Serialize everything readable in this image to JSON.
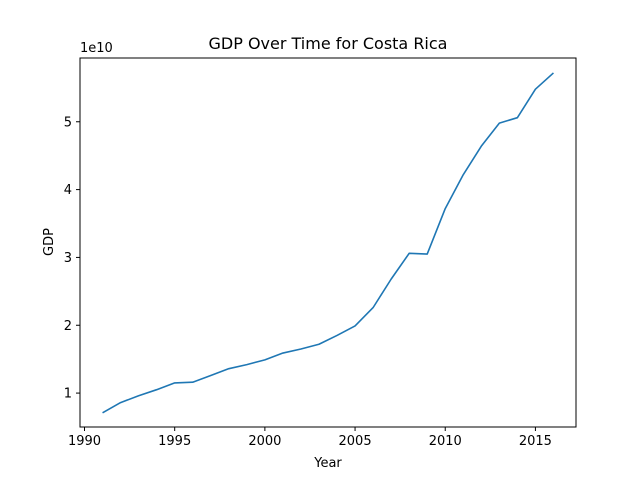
{
  "chart_data": {
    "type": "line",
    "title": "GDP Over Time for Costa Rica",
    "xlabel": "Year",
    "ylabel": "GDP",
    "y_offset_label": "1e10",
    "y_scale_factor": 10000000000,
    "xlim": [
      1989.75,
      2017.25
    ],
    "ylim": [
      0.5,
      5.94
    ],
    "xticks": [
      1990,
      1995,
      2000,
      2005,
      2010,
      2015
    ],
    "yticks": [
      1,
      2,
      3,
      4,
      5
    ],
    "grid": false,
    "legend": "none",
    "line_color": "#1f77b4",
    "series": [
      {
        "x": [
          1991,
          1992,
          1993,
          1994,
          1995,
          1996,
          1997,
          1998,
          1999,
          2000,
          2001,
          2002,
          2003,
          2004,
          2005,
          2006,
          2007,
          2008,
          2009,
          2010,
          2011,
          2012,
          2013,
          2014,
          2015,
          2016
        ],
        "values": [
          0.71,
          0.86,
          0.96,
          1.05,
          1.15,
          1.16,
          1.26,
          1.36,
          1.42,
          1.49,
          1.59,
          1.65,
          1.72,
          1.85,
          1.99,
          2.26,
          2.68,
          3.06,
          3.05,
          3.72,
          4.22,
          4.64,
          4.98,
          5.06,
          5.48,
          5.72
        ]
      }
    ]
  }
}
